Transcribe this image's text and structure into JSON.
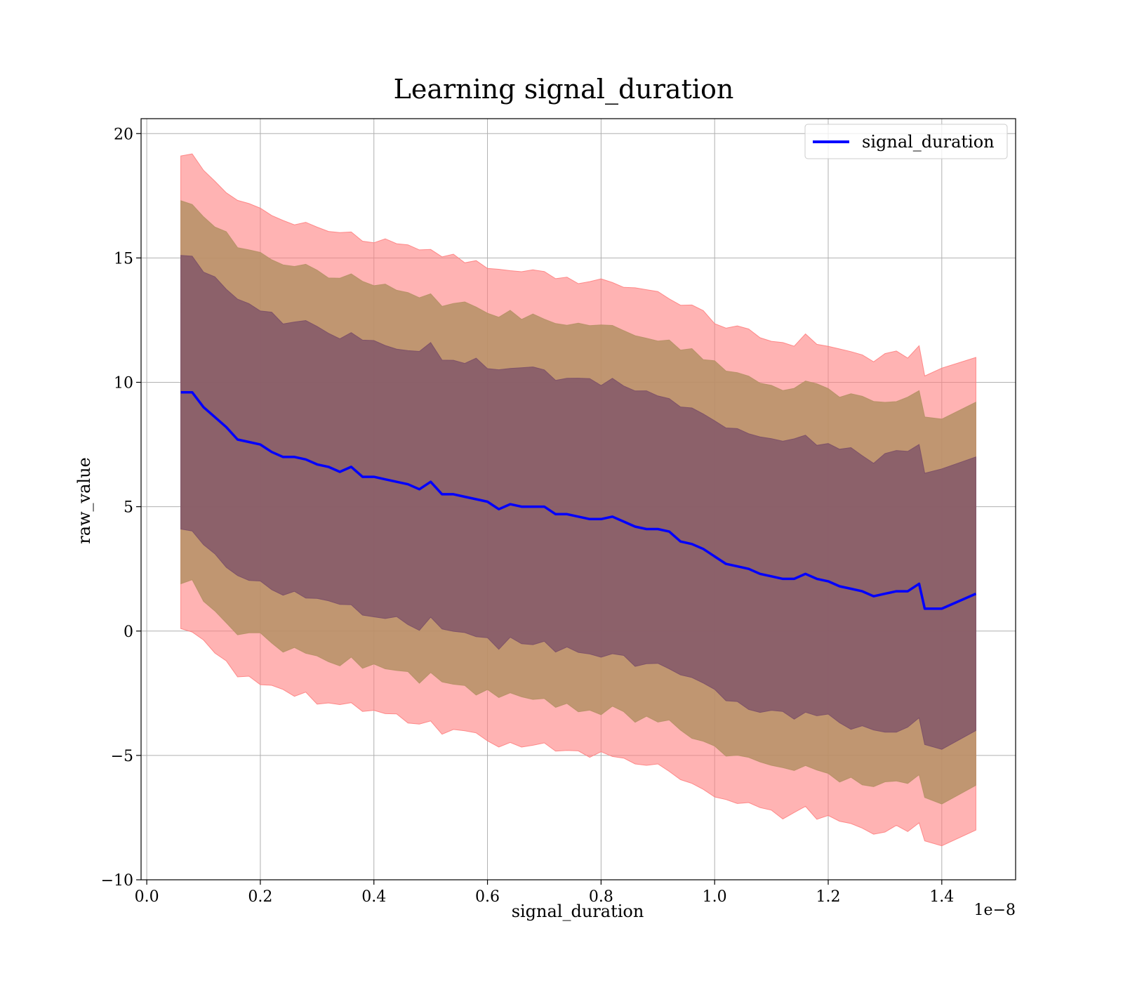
{
  "chart_data": {
    "type": "line",
    "title": "Learning signal_duration",
    "xlabel": "signal_duration",
    "ylabel": "raw_value",
    "x_offset_text": "1e−8",
    "x_ticks": [
      0.0,
      0.2,
      0.4,
      0.6,
      0.8,
      1.0,
      1.2,
      1.4
    ],
    "x_tick_labels": [
      "0.0",
      "0.2",
      "0.4",
      "0.6",
      "0.8",
      "1.0",
      "1.2",
      "1.4"
    ],
    "y_ticks": [
      20,
      15,
      10,
      5,
      0,
      -5,
      -10
    ],
    "y_tick_labels": [
      "20",
      "15",
      "10",
      "5",
      "0",
      "−5",
      "−10"
    ],
    "xlim": [
      -0.01,
      1.53
    ],
    "ylim": [
      -10,
      20.6
    ],
    "grid": true,
    "legend": {
      "position": "top-right",
      "entries": [
        "signal_duration"
      ]
    },
    "colors": {
      "line": "#0000ff",
      "band_outer": "#ff8080",
      "band_middle": "#b59065",
      "band_inner": "#7b4f68"
    },
    "series": [
      {
        "name": "signal_duration",
        "x": [
          0.06,
          0.08,
          0.1,
          0.12,
          0.14,
          0.16,
          0.18,
          0.2,
          0.22,
          0.24,
          0.26,
          0.28,
          0.3,
          0.32,
          0.34,
          0.36,
          0.38,
          0.4,
          0.42,
          0.44,
          0.46,
          0.48,
          0.5,
          0.52,
          0.54,
          0.56,
          0.58,
          0.6,
          0.62,
          0.64,
          0.66,
          0.68,
          0.7,
          0.72,
          0.74,
          0.76,
          0.78,
          0.8,
          0.82,
          0.84,
          0.86,
          0.88,
          0.9,
          0.92,
          0.94,
          0.96,
          0.98,
          1.0,
          1.02,
          1.04,
          1.06,
          1.08,
          1.1,
          1.12,
          1.14,
          1.16,
          1.18,
          1.2,
          1.22,
          1.24,
          1.26,
          1.28,
          1.3,
          1.32,
          1.34,
          1.36,
          1.37,
          1.4,
          1.46
        ],
        "y": [
          9.6,
          9.6,
          9.0,
          8.6,
          8.2,
          7.7,
          7.6,
          7.5,
          7.2,
          7.0,
          7.0,
          6.9,
          6.7,
          6.6,
          6.4,
          6.6,
          6.2,
          6.2,
          6.1,
          6.0,
          5.9,
          5.7,
          6.0,
          5.5,
          5.5,
          5.4,
          5.3,
          5.2,
          4.9,
          5.1,
          5.0,
          5.0,
          5.0,
          4.7,
          4.7,
          4.6,
          4.5,
          4.5,
          4.6,
          4.4,
          4.2,
          4.1,
          4.1,
          4.0,
          3.6,
          3.5,
          3.3,
          3.0,
          2.7,
          2.6,
          2.5,
          2.3,
          2.2,
          2.1,
          2.1,
          2.3,
          2.1,
          2.0,
          1.8,
          1.7,
          1.6,
          1.4,
          1.5,
          1.6,
          1.6,
          1.9,
          0.9,
          0.9,
          1.5
        ]
      }
    ],
    "bands": [
      {
        "offset": 9.5,
        "color": "#ff8080",
        "opacity": 0.6
      },
      {
        "offset": 7.7,
        "color": "#b59065",
        "opacity": 0.85
      },
      {
        "offset": 5.5,
        "color": "#7b4f68",
        "opacity": 0.75
      }
    ]
  }
}
